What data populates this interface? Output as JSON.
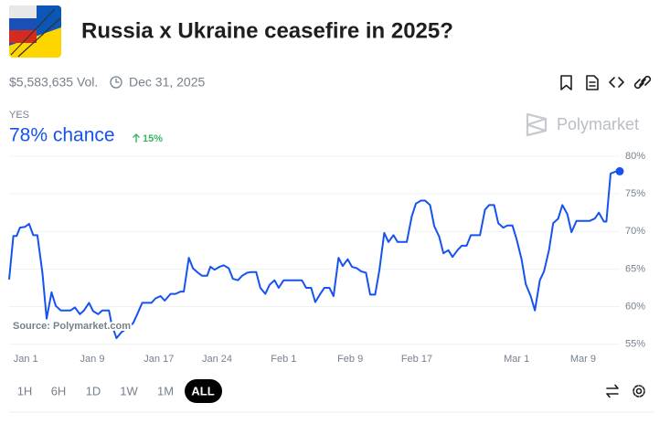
{
  "header": {
    "title": "Russia x Ukraine ceasefire in 2025?",
    "volume": "$5,583,635 Vol.",
    "end_date": "Dec 31, 2025"
  },
  "outcome": {
    "label": "YES",
    "chance": "78% chance",
    "change": "15%"
  },
  "brand": "Polymarket",
  "time_ranges": [
    "1H",
    "6H",
    "1D",
    "1W",
    "1M",
    "ALL"
  ],
  "chart_data": {
    "type": "line",
    "color": "#1652f0",
    "source": "Source: Polymarket.com",
    "grid": true,
    "x": [
      -2.0,
      -1.5,
      -1.1,
      -0.7,
      -0.1,
      0.4,
      0.9,
      1.4,
      2.0,
      2.5,
      3.1,
      3.6,
      4.2,
      4.8,
      5.4,
      5.9,
      6.5,
      7.0,
      7.6,
      8.1,
      8.7,
      9.2,
      10.0,
      10.3,
      10.9,
      11.5,
      12.3,
      12.9,
      13.4,
      14.0,
      14.5,
      15.1,
      15.6,
      16.2,
      16.7,
      17.4,
      18.0,
      18.6,
      19.0,
      19.6,
      20.1,
      20.7,
      21.2,
      21.8,
      22.2,
      22.7,
      23.3,
      23.8,
      24.4,
      24.9,
      25.5,
      26.0,
      26.6,
      27.1,
      27.7,
      28.2,
      28.8,
      29.3,
      29.9,
      30.4,
      31.0,
      31.5,
      32.1,
      32.6,
      33.2,
      33.7,
      34.3,
      34.8,
      35.4,
      35.9,
      36.5,
      37.0,
      37.6,
      38.1,
      38.7,
      39.2,
      39.8,
      40.3,
      40.9,
      41.4,
      42.0,
      42.5,
      43.1,
      43.6,
      44.2,
      44.7,
      45.3,
      45.8,
      46.4,
      46.9,
      47.5,
      48.0,
      48.6,
      49.1,
      49.7,
      50.2,
      50.8,
      51.3,
      51.9,
      52.4,
      53.0,
      53.5,
      54.1,
      54.6,
      55.2,
      55.7,
      56.3,
      56.8,
      57.4,
      57.9,
      58.5,
      59.0,
      59.6,
      60.1,
      60.7,
      61.2,
      61.8,
      62.3,
      62.9,
      63.4,
      64.0,
      64.5,
      65.1,
      65.6,
      66.2,
      66.7,
      67.3,
      67.8,
      68.4,
      68.9,
      69.5,
      69.8,
      70.3,
      71.0,
      71.4
    ],
    "values": [
      63.6,
      69.4,
      69.4,
      70.5,
      70.6,
      71.0,
      69.5,
      69.5,
      64.5,
      58.4,
      61.9,
      60.1,
      59.5,
      59.5,
      59.5,
      59.9,
      59.0,
      59.5,
      60.5,
      59.4,
      59.0,
      59.5,
      59.5,
      57.8,
      55.8,
      56.6,
      57.2,
      57.8,
      59.0,
      60.5,
      60.5,
      60.5,
      61.1,
      61.4,
      60.8,
      61.7,
      61.7,
      62.0,
      62.0,
      66.5,
      65.1,
      64.5,
      64.1,
      64.1,
      65.3,
      64.9,
      65.3,
      65.5,
      65.1,
      63.7,
      63.5,
      64.1,
      64.5,
      64.6,
      64.6,
      62.5,
      61.7,
      62.9,
      63.5,
      62.5,
      63.5,
      63.5,
      63.5,
      63.5,
      63.5,
      62.5,
      62.5,
      60.6,
      61.7,
      62.5,
      62.5,
      61.4,
      66.5,
      65.4,
      66.3,
      65.3,
      65.1,
      64.7,
      64.5,
      61.6,
      61.6,
      64.8,
      69.8,
      68.6,
      69.5,
      68.6,
      68.6,
      68.6,
      72.0,
      73.7,
      74.1,
      74.1,
      73.5,
      70.7,
      69.3,
      67.1,
      67.5,
      66.6,
      67.5,
      68.1,
      68.1,
      69.5,
      69.5,
      69.5,
      72.9,
      73.5,
      73.5,
      71.1,
      70.5,
      70.8,
      70.8,
      69.0,
      66.3,
      63.0,
      61.4,
      59.5,
      63.5,
      64.7,
      67.5,
      71.1,
      71.7,
      73.5,
      72.3,
      69.9,
      71.4,
      71.4,
      71.4,
      71.4,
      71.7,
      72.5,
      71.3,
      71.3,
      77.7,
      78.0,
      78
    ],
    "xlim": [
      -2,
      71.4
    ],
    "xticks": [
      {
        "value": 0,
        "label": "Jan 1"
      },
      {
        "value": 8,
        "label": "Jan 9"
      },
      {
        "value": 16,
        "label": "Jan 17"
      },
      {
        "value": 23,
        "label": "Jan 24"
      },
      {
        "value": 31,
        "label": "Feb 1"
      },
      {
        "value": 39,
        "label": "Feb 9"
      },
      {
        "value": 47,
        "label": "Feb 17"
      },
      {
        "value": 59,
        "label": "Mar 1"
      },
      {
        "value": 67,
        "label": "Mar 9"
      }
    ],
    "ylim": [
      54.6,
      81
    ],
    "yticks": [
      {
        "value": 80,
        "label": "80%"
      },
      {
        "value": 75,
        "label": "75%"
      },
      {
        "value": 70,
        "label": "70%"
      },
      {
        "value": 65,
        "label": "65%"
      },
      {
        "value": 60,
        "label": "60%"
      },
      {
        "value": 55,
        "label": "55%"
      }
    ]
  }
}
